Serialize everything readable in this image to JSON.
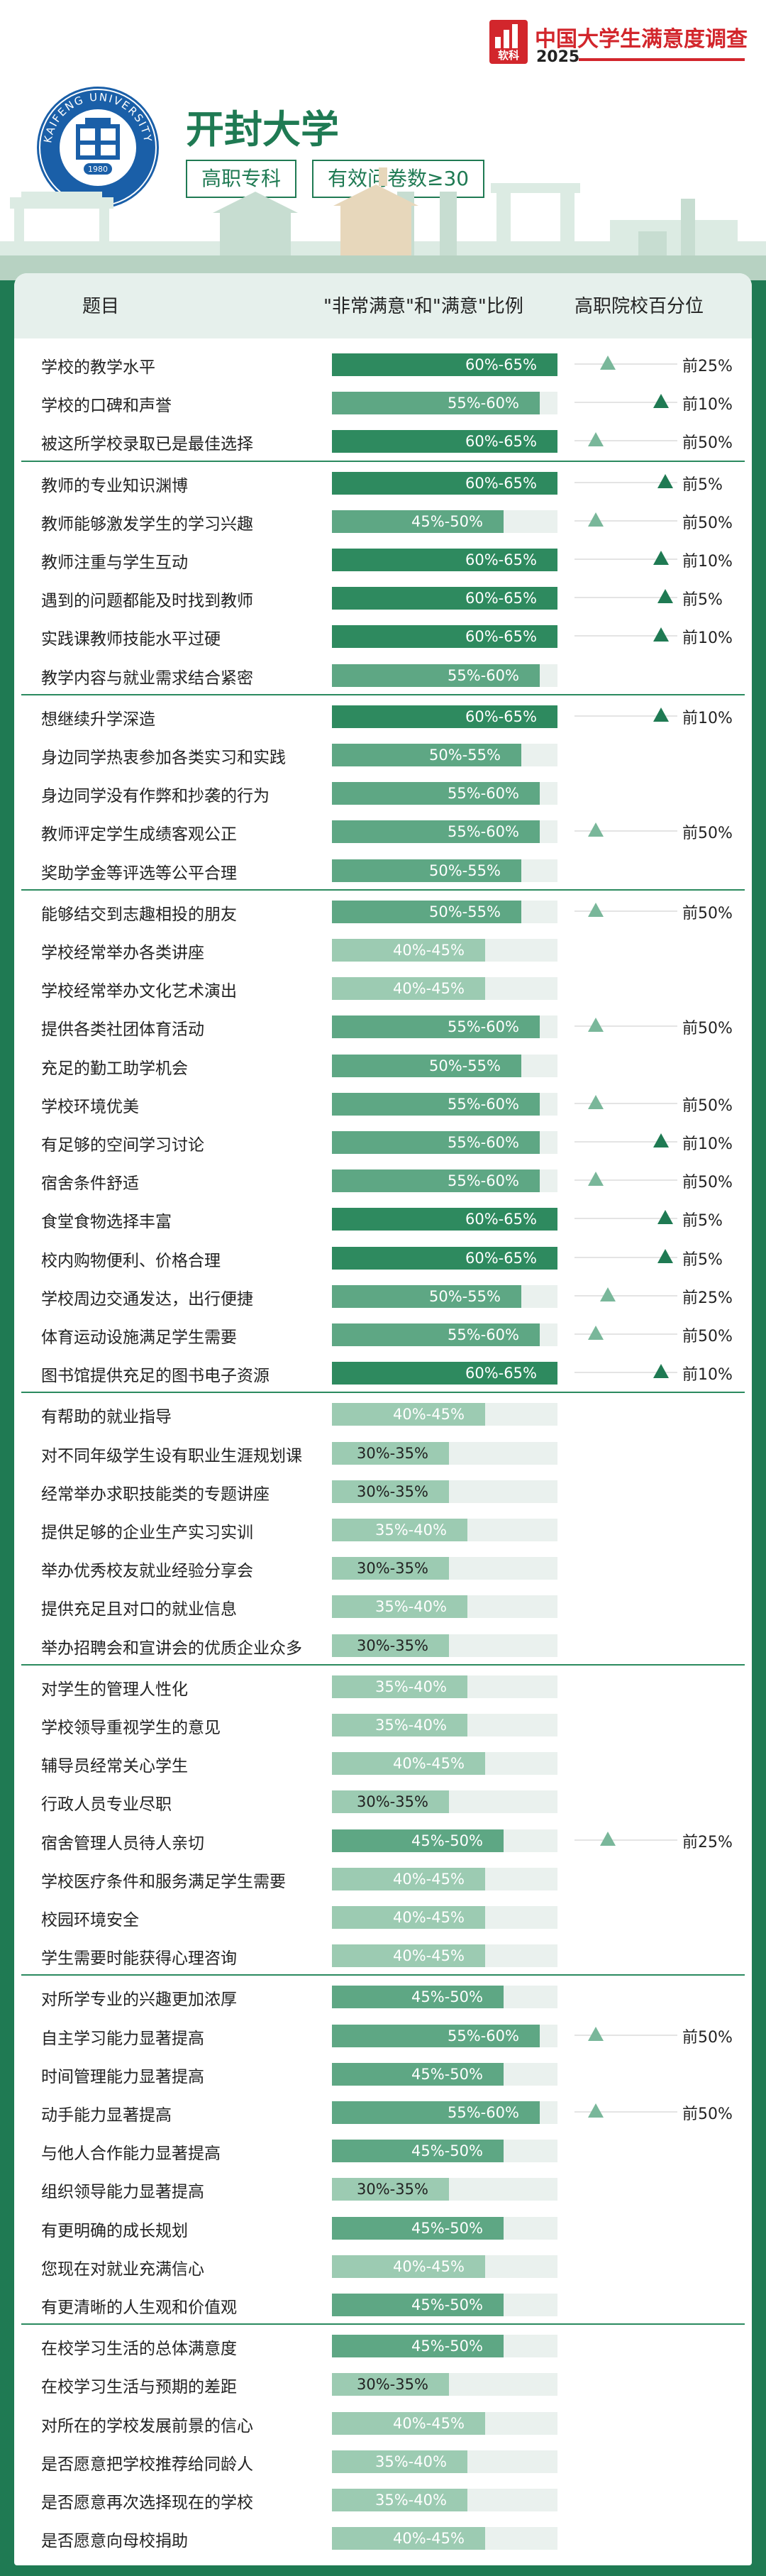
{
  "survey": {
    "logo_text": "软科",
    "title": "中国大学生满意度调查",
    "year": "2025"
  },
  "university": {
    "name": "开封大学",
    "seal_text": "KAIFENG UNIVERSITY",
    "seal_year": "1980",
    "tags": [
      "高职专科",
      "有效问卷数≥30"
    ]
  },
  "colors": {
    "primary": "#1f7a53",
    "bar_high": "#2e8a5f",
    "bar_mid": "#5ea784",
    "bar_low": "#9ccbb2",
    "track": "#eaf1ee"
  },
  "table": {
    "headers": {
      "item": "题目",
      "ratio": "\"非常满意\"和\"满意\"比例",
      "rank": "高职院校百分位"
    },
    "groups": [
      [
        {
          "label": "学校的教学水平",
          "range": "60%-65%",
          "level": 0.625,
          "percentile": "前25%",
          "pos": 0.35
        },
        {
          "label": "学校的口碑和声誉",
          "range": "55%-60%",
          "level": 0.575,
          "percentile": "前10%",
          "pos": 0.9
        },
        {
          "label": "被这所学校录取已是最佳选择",
          "range": "60%-65%",
          "level": 0.625,
          "percentile": "前50%",
          "pos": 0.22
        }
      ],
      [
        {
          "label": "教师的专业知识渊博",
          "range": "60%-65%",
          "level": 0.625,
          "percentile": "前5%",
          "pos": 0.95
        },
        {
          "label": "教师能够激发学生的学习兴趣",
          "range": "45%-50%",
          "level": 0.475,
          "percentile": "前50%",
          "pos": 0.22
        },
        {
          "label": "教师注重与学生互动",
          "range": "60%-65%",
          "level": 0.625,
          "percentile": "前10%",
          "pos": 0.9
        },
        {
          "label": "遇到的问题都能及时找到教师",
          "range": "60%-65%",
          "level": 0.625,
          "percentile": "前5%",
          "pos": 0.95
        },
        {
          "label": "实践课教师技能水平过硬",
          "range": "60%-65%",
          "level": 0.625,
          "percentile": "前10%",
          "pos": 0.9
        },
        {
          "label": "教学内容与就业需求结合紧密",
          "range": "55%-60%",
          "level": 0.575,
          "percentile": "",
          "pos": null
        }
      ],
      [
        {
          "label": "想继续升学深造",
          "range": "60%-65%",
          "level": 0.625,
          "percentile": "前10%",
          "pos": 0.9
        },
        {
          "label": "身边同学热衷参加各类实习和实践",
          "range": "50%-55%",
          "level": 0.525,
          "percentile": "",
          "pos": null
        },
        {
          "label": "身边同学没有作弊和抄袭的行为",
          "range": "55%-60%",
          "level": 0.575,
          "percentile": "",
          "pos": null
        },
        {
          "label": "教师评定学生成绩客观公正",
          "range": "55%-60%",
          "level": 0.575,
          "percentile": "前50%",
          "pos": 0.22
        },
        {
          "label": "奖助学金等评选等公平合理",
          "range": "50%-55%",
          "level": 0.525,
          "percentile": "",
          "pos": null
        }
      ],
      [
        {
          "label": "能够结交到志趣相投的朋友",
          "range": "50%-55%",
          "level": 0.525,
          "percentile": "前50%",
          "pos": 0.22
        },
        {
          "label": "学校经常举办各类讲座",
          "range": "40%-45%",
          "level": 0.425,
          "percentile": "",
          "pos": null
        },
        {
          "label": "学校经常举办文化艺术演出",
          "range": "40%-45%",
          "level": 0.425,
          "percentile": "",
          "pos": null
        },
        {
          "label": "提供各类社团体育活动",
          "range": "55%-60%",
          "level": 0.575,
          "percentile": "前50%",
          "pos": 0.22
        },
        {
          "label": "充足的勤工助学机会",
          "range": "50%-55%",
          "level": 0.525,
          "percentile": "",
          "pos": null
        },
        {
          "label": "学校环境优美",
          "range": "55%-60%",
          "level": 0.575,
          "percentile": "前50%",
          "pos": 0.22
        },
        {
          "label": "有足够的空间学习讨论",
          "range": "55%-60%",
          "level": 0.575,
          "percentile": "前10%",
          "pos": 0.9
        },
        {
          "label": "宿舍条件舒适",
          "range": "55%-60%",
          "level": 0.575,
          "percentile": "前50%",
          "pos": 0.22
        },
        {
          "label": "食堂食物选择丰富",
          "range": "60%-65%",
          "level": 0.625,
          "percentile": "前5%",
          "pos": 0.95
        },
        {
          "label": "校内购物便利、价格合理",
          "range": "60%-65%",
          "level": 0.625,
          "percentile": "前5%",
          "pos": 0.95
        },
        {
          "label": "学校周边交通发达，出行便捷",
          "range": "50%-55%",
          "level": 0.525,
          "percentile": "前25%",
          "pos": 0.35
        },
        {
          "label": "体育运动设施满足学生需要",
          "range": "55%-60%",
          "level": 0.575,
          "percentile": "前50%",
          "pos": 0.22
        },
        {
          "label": "图书馆提供充足的图书电子资源",
          "range": "60%-65%",
          "level": 0.625,
          "percentile": "前10%",
          "pos": 0.9
        }
      ],
      [
        {
          "label": "有帮助的就业指导",
          "range": "40%-45%",
          "level": 0.425,
          "percentile": "",
          "pos": null
        },
        {
          "label": "对不同年级学生设有职业生涯规划课",
          "range": "30%-35%",
          "level": 0.325,
          "percentile": "",
          "pos": null
        },
        {
          "label": "经常举办求职技能类的专题讲座",
          "range": "30%-35%",
          "level": 0.325,
          "percentile": "",
          "pos": null
        },
        {
          "label": "提供足够的企业生产实习实训",
          "range": "35%-40%",
          "level": 0.375,
          "percentile": "",
          "pos": null
        },
        {
          "label": "举办优秀校友就业经验分享会",
          "range": "30%-35%",
          "level": 0.325,
          "percentile": "",
          "pos": null
        },
        {
          "label": "提供充足且对口的就业信息",
          "range": "35%-40%",
          "level": 0.375,
          "percentile": "",
          "pos": null
        },
        {
          "label": "举办招聘会和宣讲会的优质企业众多",
          "range": "30%-35%",
          "level": 0.325,
          "percentile": "",
          "pos": null
        }
      ],
      [
        {
          "label": "对学生的管理人性化",
          "range": "35%-40%",
          "level": 0.375,
          "percentile": "",
          "pos": null
        },
        {
          "label": "学校领导重视学生的意见",
          "range": "35%-40%",
          "level": 0.375,
          "percentile": "",
          "pos": null
        },
        {
          "label": "辅导员经常关心学生",
          "range": "40%-45%",
          "level": 0.425,
          "percentile": "",
          "pos": null
        },
        {
          "label": "行政人员专业尽职",
          "range": "30%-35%",
          "level": 0.325,
          "percentile": "",
          "pos": null
        },
        {
          "label": "宿舍管理人员待人亲切",
          "range": "45%-50%",
          "level": 0.475,
          "percentile": "前25%",
          "pos": 0.35
        },
        {
          "label": "学校医疗条件和服务满足学生需要",
          "range": "40%-45%",
          "level": 0.425,
          "percentile": "",
          "pos": null
        },
        {
          "label": "校园环境安全",
          "range": "40%-45%",
          "level": 0.425,
          "percentile": "",
          "pos": null
        },
        {
          "label": "学生需要时能获得心理咨询",
          "range": "40%-45%",
          "level": 0.425,
          "percentile": "",
          "pos": null
        }
      ],
      [
        {
          "label": "对所学专业的兴趣更加浓厚",
          "range": "45%-50%",
          "level": 0.475,
          "percentile": "",
          "pos": null
        },
        {
          "label": "自主学习能力显著提高",
          "range": "55%-60%",
          "level": 0.575,
          "percentile": "前50%",
          "pos": 0.22
        },
        {
          "label": "时间管理能力显著提高",
          "range": "45%-50%",
          "level": 0.475,
          "percentile": "",
          "pos": null
        },
        {
          "label": "动手能力显著提高",
          "range": "55%-60%",
          "level": 0.575,
          "percentile": "前50%",
          "pos": 0.22
        },
        {
          "label": "与他人合作能力显著提高",
          "range": "45%-50%",
          "level": 0.475,
          "percentile": "",
          "pos": null
        },
        {
          "label": "组织领导能力显著提高",
          "range": "30%-35%",
          "level": 0.325,
          "percentile": "",
          "pos": null
        },
        {
          "label": "有更明确的成长规划",
          "range": "45%-50%",
          "level": 0.475,
          "percentile": "",
          "pos": null
        },
        {
          "label": "您现在对就业充满信心",
          "range": "40%-45%",
          "level": 0.425,
          "percentile": "",
          "pos": null
        },
        {
          "label": "有更清晰的人生观和价值观",
          "range": "45%-50%",
          "level": 0.475,
          "percentile": "",
          "pos": null
        }
      ],
      [
        {
          "label": "在校学习生活的总体满意度",
          "range": "45%-50%",
          "level": 0.475,
          "percentile": "",
          "pos": null
        },
        {
          "label": "在校学习生活与预期的差距",
          "range": "30%-35%",
          "level": 0.325,
          "percentile": "",
          "pos": null
        },
        {
          "label": "对所在的学校发展前景的信心",
          "range": "40%-45%",
          "level": 0.425,
          "percentile": "",
          "pos": null
        },
        {
          "label": "是否愿意把学校推荐给同龄人",
          "range": "35%-40%",
          "level": 0.375,
          "percentile": "",
          "pos": null
        },
        {
          "label": "是否愿意再次选择现在的学校",
          "range": "35%-40%",
          "level": 0.375,
          "percentile": "",
          "pos": null
        },
        {
          "label": "是否愿意向母校捐助",
          "range": "40%-45%",
          "level": 0.425,
          "percentile": "",
          "pos": null
        }
      ]
    ]
  }
}
